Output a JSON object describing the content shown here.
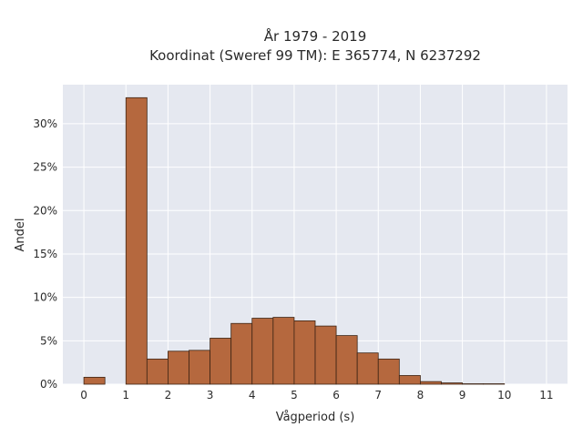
{
  "chart_data": {
    "type": "bar",
    "title_lines": [
      "År 1979 - 2019",
      "Koordinat (Sweref 99 TM): E 365774, N 6237292"
    ],
    "xlabel": "Vågperiod (s)",
    "ylabel": "Andel",
    "bin_width": 0.5,
    "bins": [
      {
        "x0": 0.0,
        "value": 0.8
      },
      {
        "x0": 0.5,
        "value": 0.0
      },
      {
        "x0": 1.0,
        "value": 33.0
      },
      {
        "x0": 1.5,
        "value": 2.9
      },
      {
        "x0": 2.0,
        "value": 3.8
      },
      {
        "x0": 2.5,
        "value": 3.9
      },
      {
        "x0": 3.0,
        "value": 5.3
      },
      {
        "x0": 3.5,
        "value": 7.0
      },
      {
        "x0": 4.0,
        "value": 7.6
      },
      {
        "x0": 4.5,
        "value": 7.7
      },
      {
        "x0": 5.0,
        "value": 7.3
      },
      {
        "x0": 5.5,
        "value": 6.7
      },
      {
        "x0": 6.0,
        "value": 5.6
      },
      {
        "x0": 6.5,
        "value": 3.6
      },
      {
        "x0": 7.0,
        "value": 2.9
      },
      {
        "x0": 7.5,
        "value": 1.0
      },
      {
        "x0": 8.0,
        "value": 0.3
      },
      {
        "x0": 8.5,
        "value": 0.15
      },
      {
        "x0": 9.0,
        "value": 0.05
      },
      {
        "x0": 9.5,
        "value": 0.05
      }
    ],
    "xlim": [
      -0.5,
      11.5
    ],
    "ylim": [
      0,
      34.5
    ],
    "x_ticks": [
      0,
      1,
      2,
      3,
      4,
      5,
      6,
      7,
      8,
      9,
      10,
      11
    ],
    "x_tick_labels": [
      "0",
      "1",
      "2",
      "3",
      "4",
      "5",
      "6",
      "7",
      "8",
      "9",
      "10",
      "11"
    ],
    "y_ticks": [
      0,
      5,
      10,
      15,
      20,
      25,
      30
    ],
    "y_tick_labels": [
      "0%",
      "5%",
      "10%",
      "15%",
      "20%",
      "25%",
      "30%"
    ],
    "grid": true,
    "colors": {
      "bar_fill": "#b5683e",
      "bar_edge": "#3d2414",
      "plot_bg": "#e5e8f0",
      "grid": "#ffffff"
    }
  }
}
